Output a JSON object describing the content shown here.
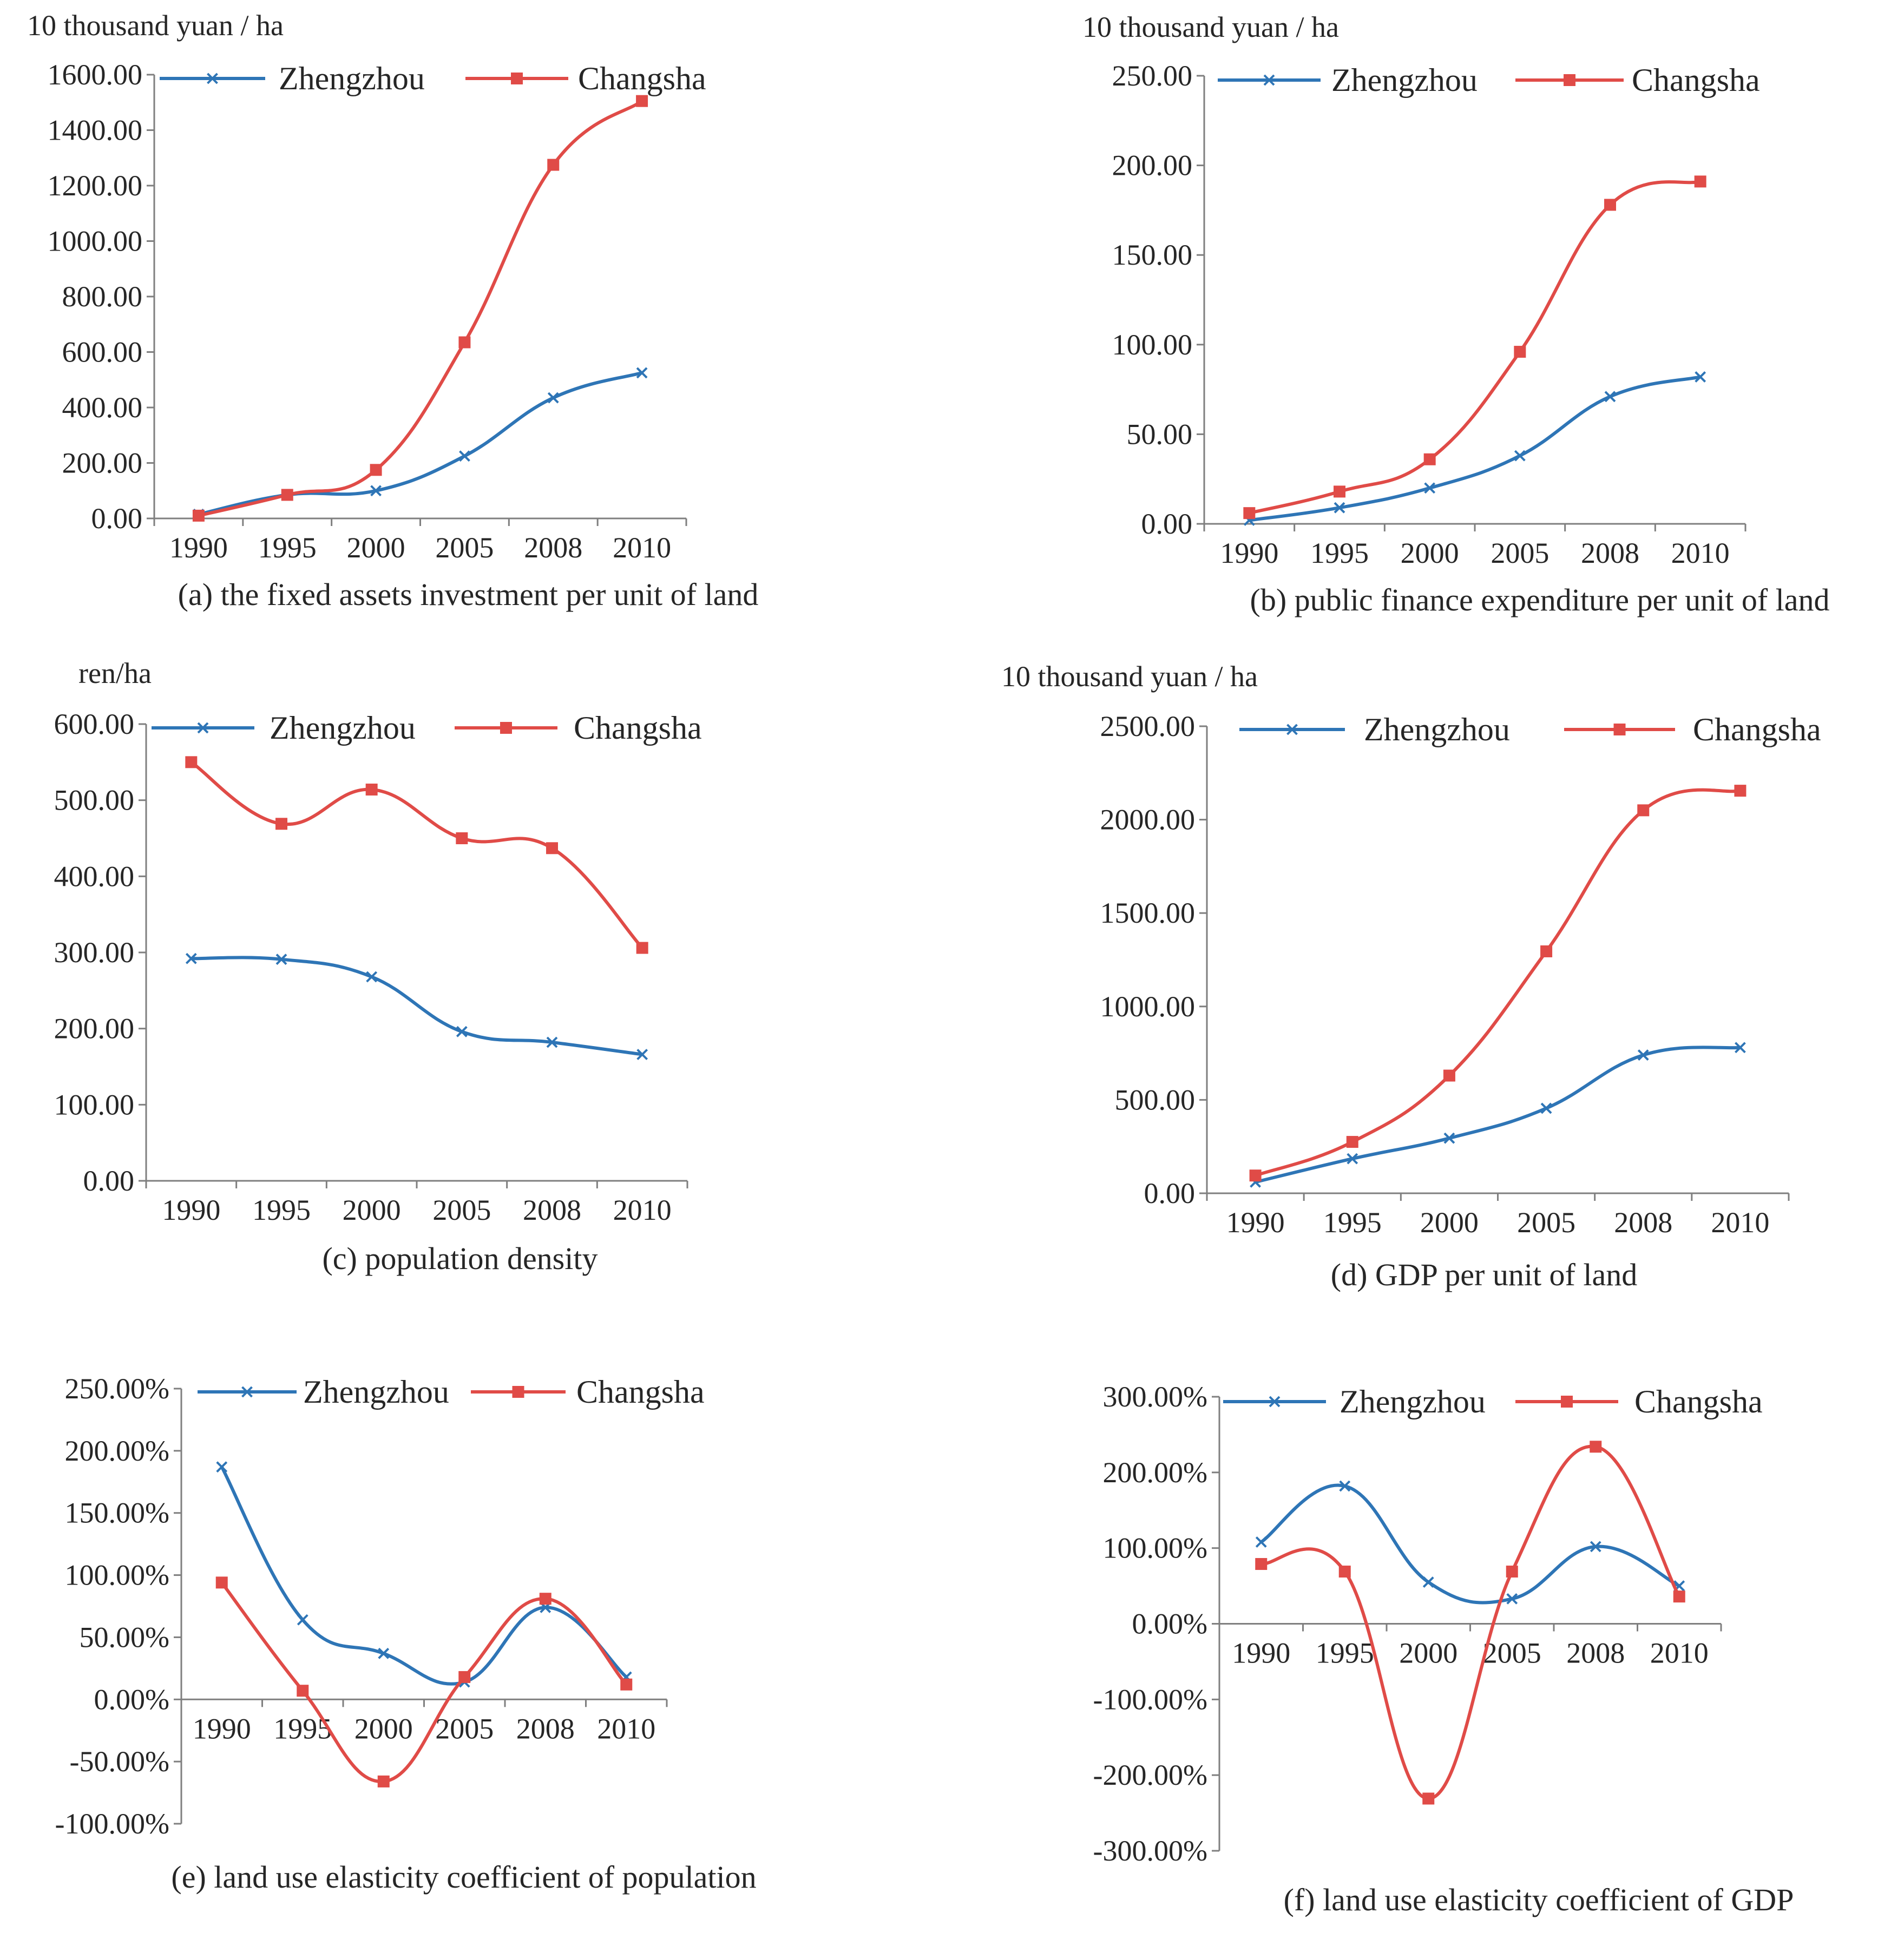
{
  "colors": {
    "zhengzhou": "#2e75b6",
    "changsha": "#e04b47",
    "axis": "#7f7f7f",
    "text": "#262626"
  },
  "chart_data": [
    {
      "id": "a",
      "type": "line",
      "caption": "(a) the fixed assets investment per unit of land",
      "unit_label": "10 thousand yuan / ha",
      "categories": [
        "1990",
        "1995",
        "2000",
        "2005",
        "2008",
        "2010"
      ],
      "ylim": [
        0,
        1600
      ],
      "yticks": [
        "0.00",
        "200.00",
        "400.00",
        "600.00",
        "800.00",
        "1000.00",
        "1200.00",
        "1400.00",
        "1600.00"
      ],
      "legend_position": "top",
      "series": [
        {
          "name": "Zhengzhou",
          "marker": "x",
          "values": [
            15,
            85,
            100,
            225,
            435,
            525
          ]
        },
        {
          "name": "Changsha",
          "marker": "square",
          "values": [
            10,
            85,
            175,
            635,
            1275,
            1505
          ]
        }
      ]
    },
    {
      "id": "b",
      "type": "line",
      "caption": "(b) public finance expenditure per unit of land",
      "unit_label": "10 thousand yuan / ha",
      "categories": [
        "1990",
        "1995",
        "2000",
        "2005",
        "2008",
        "2010"
      ],
      "ylim": [
        0,
        250
      ],
      "yticks": [
        "0.00",
        "50.00",
        "100.00",
        "150.00",
        "200.00",
        "250.00"
      ],
      "legend_position": "top",
      "series": [
        {
          "name": "Zhengzhou",
          "marker": "x",
          "values": [
            2,
            9,
            20,
            38,
            71,
            82
          ]
        },
        {
          "name": "Changsha",
          "marker": "square",
          "values": [
            6,
            18,
            36,
            96,
            178,
            191
          ]
        }
      ]
    },
    {
      "id": "c",
      "type": "line",
      "caption": "(c) population density",
      "unit_label": "ren/ha",
      "categories": [
        "1990",
        "1995",
        "2000",
        "2005",
        "2008",
        "2010"
      ],
      "ylim": [
        0,
        600
      ],
      "yticks": [
        "0.00",
        "100.00",
        "200.00",
        "300.00",
        "400.00",
        "500.00",
        "600.00"
      ],
      "legend_position": "top",
      "series": [
        {
          "name": "Zhengzhou",
          "marker": "x",
          "values": [
            292,
            291,
            268,
            196,
            182,
            166
          ]
        },
        {
          "name": "Changsha",
          "marker": "square",
          "values": [
            550,
            469,
            514,
            450,
            437,
            306
          ]
        }
      ]
    },
    {
      "id": "d",
      "type": "line",
      "caption": "(d) GDP per unit of land",
      "unit_label": "10 thousand yuan / ha",
      "categories": [
        "1990",
        "1995",
        "2000",
        "2005",
        "2008",
        "2010"
      ],
      "ylim": [
        0,
        2500
      ],
      "yticks": [
        "0.00",
        "500.00",
        "1000.00",
        "1500.00",
        "2000.00",
        "2500.00"
      ],
      "legend_position": "top",
      "series": [
        {
          "name": "Zhengzhou",
          "marker": "x",
          "values": [
            60,
            185,
            295,
            455,
            740,
            780
          ]
        },
        {
          "name": "Changsha",
          "marker": "square",
          "values": [
            95,
            275,
            630,
            1295,
            2050,
            2155
          ]
        }
      ]
    },
    {
      "id": "e",
      "type": "line",
      "caption": "(e) land use elasticity coefficient of population",
      "unit_label": "",
      "categories": [
        "1990",
        "1995",
        "2000",
        "2005",
        "2008",
        "2010"
      ],
      "ylim": [
        -100,
        250
      ],
      "yticks": [
        "-100.00%",
        "-50.00%",
        "0.00%",
        "50.00%",
        "100.00%",
        "150.00%",
        "200.00%",
        "250.00%"
      ],
      "legend_position": "top",
      "series": [
        {
          "name": "Zhengzhou",
          "marker": "x",
          "values": [
            187,
            64,
            37,
            14,
            74,
            18
          ]
        },
        {
          "name": "Changsha",
          "marker": "square",
          "values": [
            94,
            7,
            -66,
            18,
            81,
            12
          ]
        }
      ]
    },
    {
      "id": "f",
      "type": "line",
      "caption": "(f) land use elasticity coefficient of GDP",
      "unit_label": "",
      "categories": [
        "1990",
        "1995",
        "2000",
        "2005",
        "2008",
        "2010"
      ],
      "ylim": [
        -300,
        300
      ],
      "yticks": [
        "-300.00%",
        "-200.00%",
        "-100.00%",
        "0.00%",
        "100.00%",
        "200.00%",
        "300.00%"
      ],
      "legend_position": "top",
      "series": [
        {
          "name": "Zhengzhou",
          "marker": "x",
          "values": [
            108,
            182,
            55,
            33,
            102,
            50
          ]
        },
        {
          "name": "Changsha",
          "marker": "square",
          "values": [
            79,
            69,
            -231,
            69,
            234,
            36
          ]
        }
      ]
    }
  ]
}
